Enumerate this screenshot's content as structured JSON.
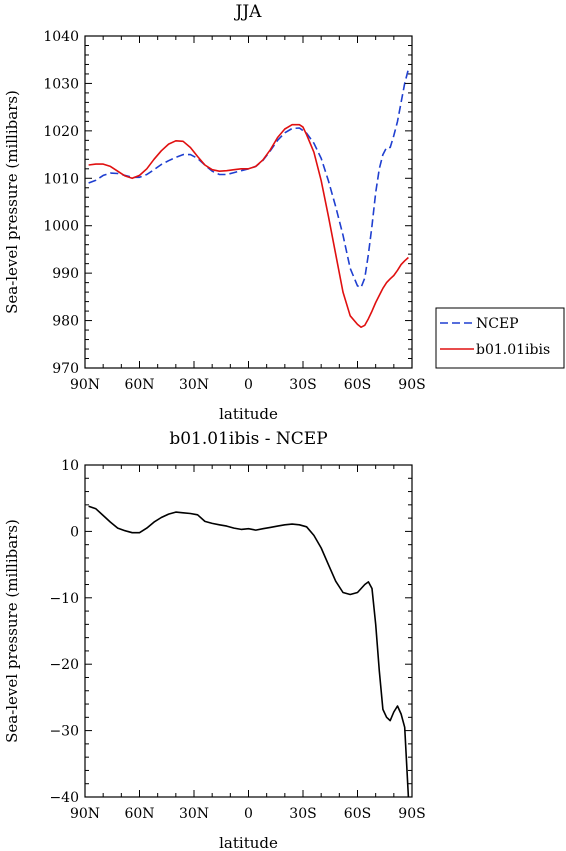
{
  "chart_data": [
    {
      "type": "line",
      "title": "JJA",
      "xlabel": "latitude",
      "ylabel": "Sea-level pressure (millibars)",
      "x_tick_labels": [
        "90N",
        "60N",
        "30N",
        "0",
        "30S",
        "60S",
        "90S"
      ],
      "x_ticks": [
        -90,
        -60,
        -30,
        0,
        30,
        60,
        90
      ],
      "xlim": [
        -90,
        90
      ],
      "ylim": [
        970,
        1040
      ],
      "y_ticks": [
        970,
        980,
        990,
        1000,
        1010,
        1020,
        1030,
        1040
      ],
      "legend_position": "outside-right",
      "series": [
        {
          "name": "NCEP",
          "color": "#1f3fd0",
          "style": "dashed",
          "x": [
            -88,
            -84,
            -80,
            -76,
            -72,
            -68,
            -64,
            -60,
            -56,
            -52,
            -48,
            -44,
            -40,
            -36,
            -32,
            -28,
            -24,
            -20,
            -16,
            -12,
            -8,
            -4,
            0,
            4,
            8,
            12,
            16,
            20,
            24,
            28,
            32,
            36,
            40,
            44,
            48,
            52,
            56,
            60,
            62,
            64,
            66,
            68,
            70,
            72,
            74,
            76,
            78,
            80,
            82,
            84,
            86,
            88
          ],
          "y": [
            1009,
            1009.6,
            1010.6,
            1011.1,
            1011,
            1010.6,
            1010.2,
            1010.2,
            1010.8,
            1011.8,
            1012.9,
            1013.7,
            1014.4,
            1015,
            1015,
            1014.2,
            1012.8,
            1011.5,
            1010.8,
            1010.8,
            1011.2,
            1011.6,
            1012,
            1012.5,
            1013.8,
            1015.8,
            1018,
            1019.6,
            1020.5,
            1020.6,
            1019.5,
            1017.4,
            1014.2,
            1009.5,
            1004,
            998,
            991,
            987.3,
            987,
            989,
            994,
            1000,
            1007,
            1012,
            1015,
            1016.5,
            1016.5,
            1019,
            1022,
            1026,
            1030,
            1033
          ]
        },
        {
          "name": "b01.01ibis",
          "color": "#e01010",
          "style": "solid",
          "x": [
            -88,
            -84,
            -80,
            -76,
            -72,
            -68,
            -64,
            -60,
            -56,
            -52,
            -48,
            -44,
            -40,
            -36,
            -32,
            -28,
            -24,
            -20,
            -16,
            -12,
            -8,
            -4,
            0,
            4,
            8,
            12,
            16,
            20,
            24,
            28,
            30,
            32,
            36,
            40,
            44,
            48,
            52,
            56,
            60,
            62,
            64,
            66,
            68,
            70,
            72,
            74,
            76,
            78,
            80,
            82,
            84,
            86,
            88
          ],
          "y": [
            1012.8,
            1013,
            1013,
            1012.5,
            1011.5,
            1010.5,
            1010,
            1010.6,
            1012,
            1014,
            1015.8,
            1017.2,
            1017.9,
            1017.8,
            1016.5,
            1014.6,
            1012.8,
            1011.8,
            1011.5,
            1011.6,
            1011.8,
            1012,
            1012,
            1012.5,
            1013.9,
            1016,
            1018.6,
            1020.4,
            1021.3,
            1021.3,
            1020.8,
            1019.2,
            1015.5,
            1009.5,
            1002,
            994,
            986,
            981,
            979.2,
            978.6,
            979,
            980.4,
            982,
            983.8,
            985.3,
            986.8,
            988,
            988.8,
            989.5,
            990.6,
            991.8,
            992.6,
            993.3
          ]
        }
      ]
    },
    {
      "type": "line",
      "title": "b01.01ibis - NCEP",
      "xlabel": "latitude",
      "ylabel": "Sea-level pressure (millibars)",
      "x_tick_labels": [
        "90N",
        "60N",
        "30N",
        "0",
        "30S",
        "60S",
        "90S"
      ],
      "x_ticks": [
        -90,
        -60,
        -30,
        0,
        30,
        60,
        90
      ],
      "xlim": [
        -90,
        90
      ],
      "ylim": [
        -40,
        10
      ],
      "y_ticks": [
        -40,
        -30,
        -20,
        -10,
        0,
        10
      ],
      "series": [
        {
          "color": "#000000",
          "style": "solid",
          "x": [
            -88,
            -84,
            -80,
            -76,
            -72,
            -68,
            -64,
            -60,
            -56,
            -52,
            -48,
            -44,
            -40,
            -36,
            -32,
            -28,
            -24,
            -20,
            -16,
            -12,
            -8,
            -4,
            0,
            4,
            8,
            12,
            16,
            20,
            24,
            28,
            32,
            36,
            40,
            44,
            48,
            52,
            56,
            60,
            64,
            66,
            68,
            70,
            72,
            74,
            76,
            78,
            80,
            82,
            84,
            86,
            88
          ],
          "y": [
            3.8,
            3.4,
            2.4,
            1.4,
            0.5,
            0.1,
            -0.2,
            -0.2,
            0.5,
            1.4,
            2.1,
            2.6,
            2.9,
            2.8,
            2.7,
            2.5,
            1.5,
            1.2,
            1.0,
            0.8,
            0.5,
            0.3,
            0.4,
            0.2,
            0.4,
            0.6,
            0.8,
            1.0,
            1.1,
            1.0,
            0.7,
            -0.6,
            -2.5,
            -5.0,
            -7.5,
            -9.2,
            -9.5,
            -9.2,
            -8.0,
            -7.6,
            -8.6,
            -14,
            -21,
            -26.8,
            -28,
            -28.5,
            -27.2,
            -26.3,
            -27.5,
            -29.5,
            -40
          ]
        }
      ]
    }
  ]
}
